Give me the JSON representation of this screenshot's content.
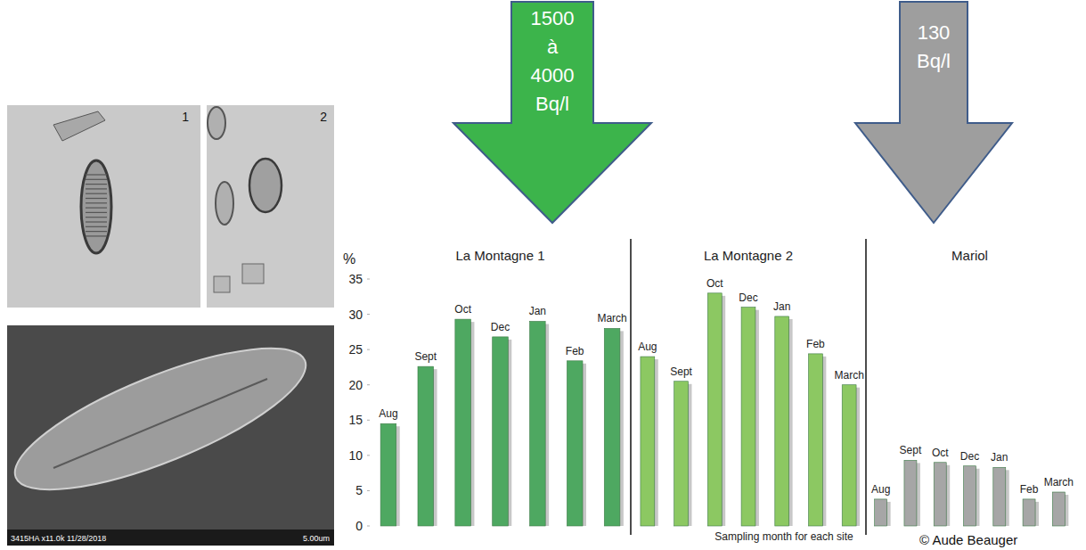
{
  "chart_data": [
    {
      "type": "bar",
      "title": "La Montagne 1",
      "categories": [
        "Aug",
        "Sept",
        "Oct",
        "Dec",
        "Jan",
        "Feb",
        "March"
      ],
      "values": [
        14.5,
        22.6,
        29.3,
        26.8,
        29,
        23.4,
        28
      ],
      "color": "#4ea861",
      "ylabel": "%",
      "ylim": [
        0,
        35
      ],
      "yticks": [
        0,
        5,
        10,
        15,
        20,
        25,
        30,
        35
      ]
    },
    {
      "type": "bar",
      "title": "La Montagne 2",
      "categories": [
        "Aug",
        "Sept",
        "Oct",
        "Dec",
        "Jan",
        "Feb",
        "March"
      ],
      "values": [
        24,
        20.5,
        33,
        31,
        29.7,
        24.4,
        20
      ],
      "color": "#8cc862",
      "xlabel": "Sampling month for each site",
      "ylim": [
        0,
        35
      ],
      "tick_labels": false
    },
    {
      "type": "bar",
      "title": "Mariol",
      "categories": [
        "Aug",
        "Sept",
        "Oct",
        "Dec",
        "Jan",
        "Feb",
        "March"
      ],
      "values": [
        3.8,
        9.3,
        9,
        8.5,
        8.3,
        3.8,
        4.8
      ],
      "color": "#a6a6a6",
      "ylim": [
        0,
        35
      ],
      "tick_labels": false
    }
  ],
  "arrows": [
    {
      "label": "1500 à 4000 Bq/l",
      "color": "#3cb44b"
    },
    {
      "label": "130 Bq/l",
      "color": "#9e9e9e"
    }
  ],
  "images": [
    {
      "label": "1"
    },
    {
      "label": "2"
    },
    {
      "label": "3415HA x11.0k 11/28/2018",
      "scale": "5.00um"
    }
  ],
  "credit": "© Aude Beauger"
}
